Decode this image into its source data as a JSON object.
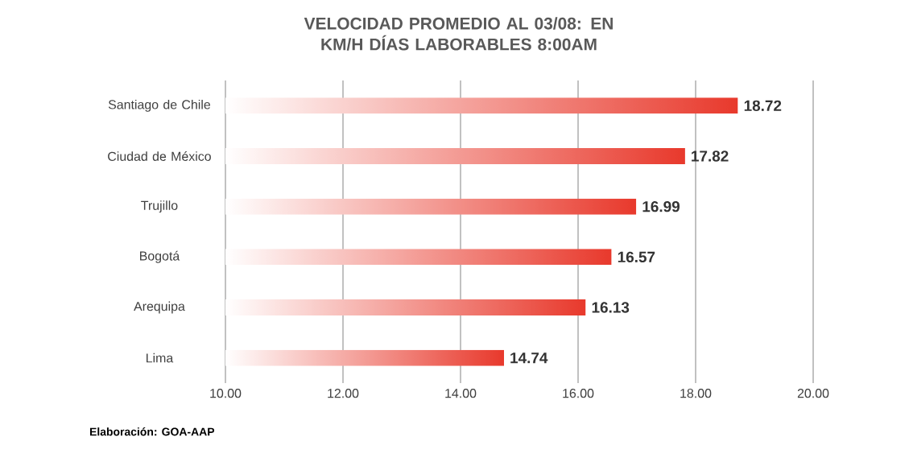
{
  "chart_data": {
    "type": "bar",
    "orientation": "horizontal",
    "title": "VELOCIDAD PROMEDIO AL 03/08: EN KM/H DÍAS LABORABLES 8:00AM",
    "categories": [
      "Santiago de Chile",
      "Ciudad de México",
      "Trujillo",
      "Bogotá",
      "Arequipa",
      "Lima"
    ],
    "values": [
      18.72,
      17.82,
      16.99,
      16.57,
      16.13,
      14.74
    ],
    "color": "#e8392c",
    "xlim": [
      10,
      20
    ],
    "xticks": [
      {
        "value": 10,
        "label": "10.00"
      },
      {
        "value": 12,
        "label": "12.00"
      },
      {
        "value": 14,
        "label": "14.00"
      },
      {
        "value": 16,
        "label": "16.00"
      },
      {
        "value": 18,
        "label": "18.00"
      },
      {
        "value": 20,
        "label": "20.00"
      }
    ],
    "grid": "x",
    "data_labels": true,
    "annotations": [
      "Elaboración: GOA-AAP"
    ]
  }
}
